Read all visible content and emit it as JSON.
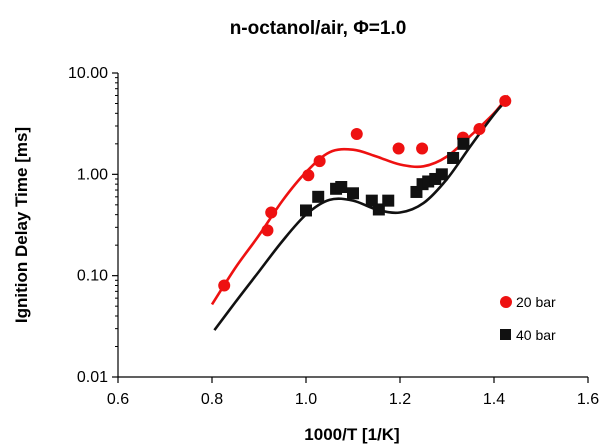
{
  "chart_data": {
    "type": "scatter",
    "title": "n-octanol/air, Φ=1.0",
    "xlabel": "1000/T [1/K]",
    "ylabel": "Ignition Delay Time [ms]",
    "x_range": [
      0.6,
      1.6
    ],
    "y_range": [
      0.01,
      10.0
    ],
    "y_scale": "log",
    "x_ticks": [
      "0.6",
      "0.8",
      "1.0",
      "1.2",
      "1.4",
      "1.6"
    ],
    "y_ticks": [
      "0.01",
      "0.10",
      "1.00",
      "10.00"
    ],
    "grid": false,
    "legend_position": "bottom-right",
    "series": [
      {
        "name": "20 bar",
        "color": "#ee1111",
        "marker": "circle",
        "points": [
          [
            0.826,
            0.08
          ],
          [
            0.918,
            0.28
          ],
          [
            0.926,
            0.42
          ],
          [
            1.005,
            0.98
          ],
          [
            1.029,
            1.35
          ],
          [
            1.108,
            2.5
          ],
          [
            1.197,
            1.8
          ],
          [
            1.247,
            1.8
          ],
          [
            1.334,
            2.3
          ],
          [
            1.369,
            2.8
          ],
          [
            1.424,
            5.3
          ]
        ],
        "curve": [
          [
            0.8,
            0.052
          ],
          [
            0.85,
            0.12
          ],
          [
            0.9,
            0.25
          ],
          [
            0.95,
            0.55
          ],
          [
            1.0,
            1.05
          ],
          [
            1.05,
            1.65
          ],
          [
            1.1,
            1.75
          ],
          [
            1.15,
            1.5
          ],
          [
            1.2,
            1.25
          ],
          [
            1.25,
            1.2
          ],
          [
            1.3,
            1.5
          ],
          [
            1.35,
            2.4
          ],
          [
            1.4,
            4.0
          ],
          [
            1.43,
            6.0
          ]
        ]
      },
      {
        "name": "40 bar",
        "color": "#111111",
        "marker": "square",
        "points": [
          [
            1.0,
            0.44
          ],
          [
            1.026,
            0.6
          ],
          [
            1.064,
            0.72
          ],
          [
            1.075,
            0.75
          ],
          [
            1.1,
            0.65
          ],
          [
            1.14,
            0.55
          ],
          [
            1.155,
            0.45
          ],
          [
            1.175,
            0.55
          ],
          [
            1.235,
            0.67
          ],
          [
            1.248,
            0.8
          ],
          [
            1.26,
            0.85
          ],
          [
            1.275,
            0.9
          ],
          [
            1.289,
            1.0
          ],
          [
            1.313,
            1.45
          ],
          [
            1.335,
            2.0
          ]
        ],
        "curve": [
          [
            0.805,
            0.029
          ],
          [
            0.85,
            0.055
          ],
          [
            0.9,
            0.11
          ],
          [
            0.95,
            0.22
          ],
          [
            1.0,
            0.4
          ],
          [
            1.05,
            0.56
          ],
          [
            1.1,
            0.55
          ],
          [
            1.15,
            0.45
          ],
          [
            1.2,
            0.42
          ],
          [
            1.25,
            0.52
          ],
          [
            1.3,
            0.9
          ],
          [
            1.35,
            1.9
          ],
          [
            1.4,
            3.9
          ],
          [
            1.425,
            5.3
          ]
        ]
      }
    ]
  }
}
